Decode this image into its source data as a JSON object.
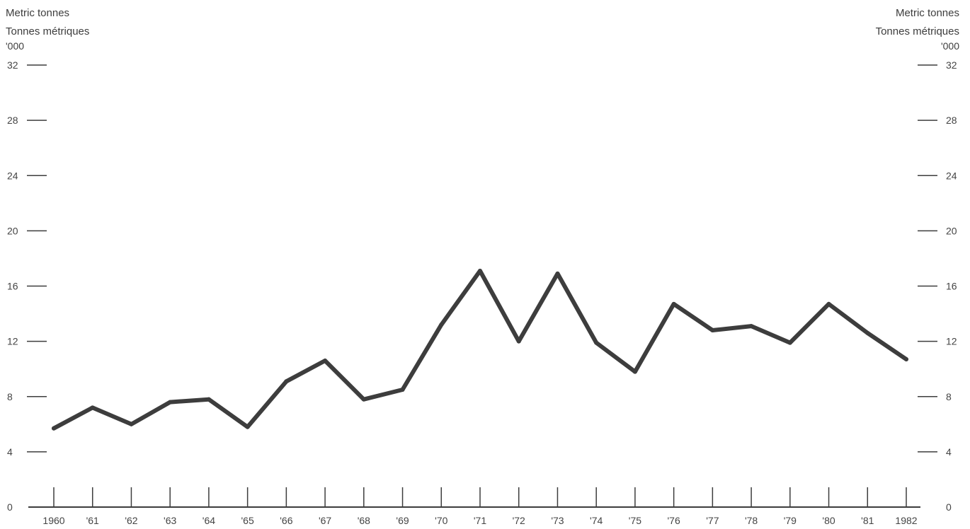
{
  "unit_label": {
    "line1": "Metric tonnes",
    "line2": "Tonnes métriques",
    "scale": "'000"
  },
  "chart_data": {
    "type": "line",
    "categories": [
      "1960",
      "'61",
      "'62",
      "'63",
      "'64",
      "'65",
      "'66",
      "'67",
      "'68",
      "'69",
      "'70",
      "'71",
      "'72",
      "'73",
      "'74",
      "'75",
      "'76",
      "'77",
      "'78",
      "'79",
      "'80",
      "'81",
      "1982"
    ],
    "series": [
      {
        "values": [
          5.7,
          7.2,
          6.0,
          7.6,
          7.8,
          5.8,
          9.1,
          10.6,
          7.8,
          8.5,
          13.2,
          17.1,
          12.0,
          16.9,
          11.9,
          9.8,
          14.7,
          12.8,
          13.1,
          11.9,
          14.7,
          12.6,
          10.7
        ]
      }
    ],
    "yticks": [
      0,
      4,
      8,
      12,
      16,
      20,
      24,
      28,
      32
    ],
    "ylim": [
      0,
      32
    ],
    "ylabel": "Metric tonnes / Tonnes métriques ('000)",
    "grid": false,
    "line_color": "#3d3d3d"
  }
}
